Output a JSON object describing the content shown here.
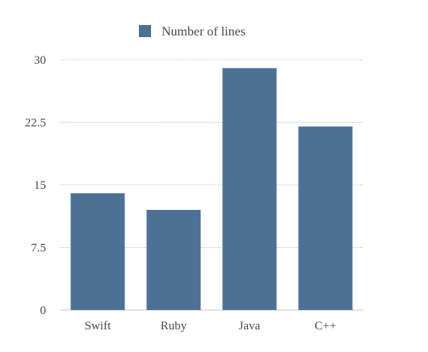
{
  "chart_data": {
    "type": "bar",
    "categories": [
      "Swift",
      "Ruby",
      "Java",
      "C++"
    ],
    "series": [
      {
        "name": "Number of lines",
        "values": [
          14,
          12,
          29,
          22
        ],
        "color": "#4d7095"
      }
    ],
    "ylim": [
      0,
      30
    ],
    "yticks": [
      "0",
      "7.5",
      "15",
      "22.5",
      "30"
    ],
    "grid": true,
    "legend_position": "top-center",
    "xlabel": "",
    "ylabel": "",
    "title": ""
  }
}
